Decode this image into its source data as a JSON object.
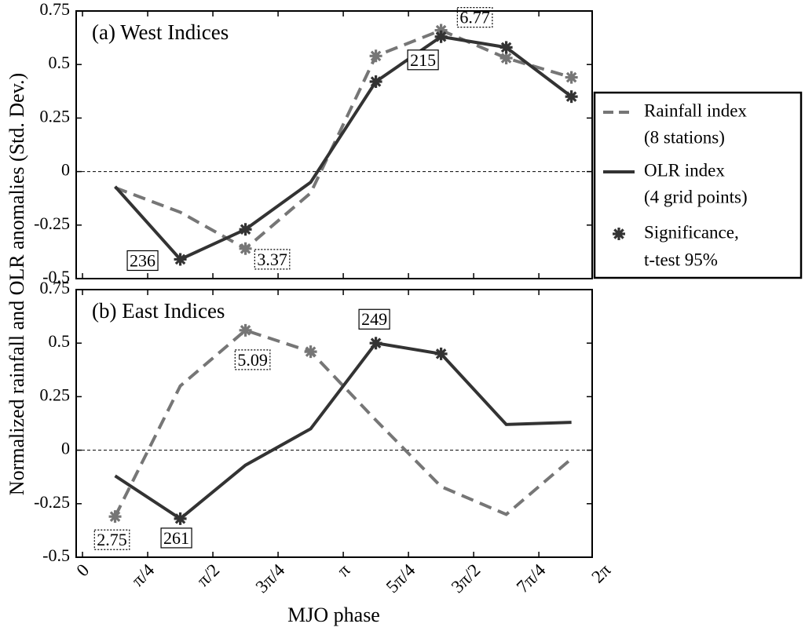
{
  "figure": {
    "xlabel": "MJO phase",
    "ylabel": "Normalized rainfall and OLR anomalies (Std. Dev.)",
    "significance_label": [
      "Significance,",
      "t-test 95%"
    ]
  },
  "chart_data": [
    {
      "type": "line",
      "title": "(a) West Indices",
      "x": [
        0.3927,
        1.1781,
        1.9635,
        2.7489,
        3.5343,
        4.3197,
        5.1051,
        5.8905
      ],
      "xlim": [
        -0.076,
        6.14
      ],
      "ylim": [
        -0.5,
        0.75
      ],
      "yticks": [
        0.75,
        0.5,
        0.25,
        0,
        -0.25,
        -0.5
      ],
      "zero_line": true,
      "series": [
        {
          "name": [
            "Rainfall index",
            "(8 stations)"
          ],
          "color": "#767676",
          "dash": true,
          "values": [
            -0.075,
            -0.19,
            -0.36,
            -0.1,
            0.54,
            0.66,
            0.53,
            0.44
          ],
          "significant": [
            false,
            false,
            true,
            false,
            true,
            true,
            true,
            true
          ],
          "annotations": [
            null,
            null,
            "3.37",
            null,
            null,
            "6.77",
            null,
            null
          ]
        },
        {
          "name": [
            "OLR index",
            "(4 grid points)"
          ],
          "color": "#333333",
          "dash": false,
          "values": [
            -0.07,
            -0.41,
            -0.27,
            -0.05,
            0.42,
            0.63,
            0.58,
            0.35
          ],
          "significant": [
            false,
            true,
            true,
            false,
            true,
            true,
            true,
            true
          ],
          "annotations": [
            null,
            "236",
            null,
            null,
            null,
            "215",
            null,
            null
          ]
        }
      ]
    },
    {
      "type": "line",
      "title": "(b) East Indices",
      "x": [
        0.3927,
        1.1781,
        1.9635,
        2.7489,
        3.5343,
        4.3197,
        5.1051,
        5.8905
      ],
      "xlim": [
        -0.076,
        6.14
      ],
      "ylim": [
        -0.5,
        0.75
      ],
      "yticks": [
        0.75,
        0.5,
        0.25,
        0,
        -0.25,
        -0.5
      ],
      "zero_line": true,
      "xticks": [
        {
          "value": 0,
          "label": "0"
        },
        {
          "value": 0.7854,
          "label": "π/4"
        },
        {
          "value": 1.5708,
          "label": "π/2"
        },
        {
          "value": 2.3562,
          "label": "3π/4"
        },
        {
          "value": 3.1416,
          "label": "π"
        },
        {
          "value": 3.927,
          "label": "5π/4"
        },
        {
          "value": 4.7124,
          "label": "3π/2"
        },
        {
          "value": 5.4978,
          "label": "7π/4"
        },
        {
          "value": 6.2832,
          "label": "2π"
        }
      ],
      "series": [
        {
          "name": [
            "Rainfall index",
            "(8 stations)"
          ],
          "color": "#767676",
          "dash": true,
          "values": [
            -0.31,
            0.3,
            0.56,
            0.46,
            0.14,
            -0.17,
            -0.3,
            -0.04
          ],
          "significant": [
            true,
            false,
            true,
            true,
            false,
            false,
            false,
            false
          ],
          "annotations": [
            "2.75",
            null,
            "5.09",
            null,
            null,
            null,
            null,
            null
          ]
        },
        {
          "name": [
            "OLR index",
            "(4 grid points)"
          ],
          "color": "#333333",
          "dash": false,
          "values": [
            -0.12,
            -0.32,
            -0.07,
            0.1,
            0.5,
            0.45,
            0.12,
            0.13
          ],
          "significant": [
            false,
            true,
            false,
            false,
            true,
            true,
            false,
            false
          ],
          "annotations": [
            null,
            "261",
            null,
            null,
            "249",
            null,
            null,
            null
          ]
        }
      ]
    }
  ]
}
